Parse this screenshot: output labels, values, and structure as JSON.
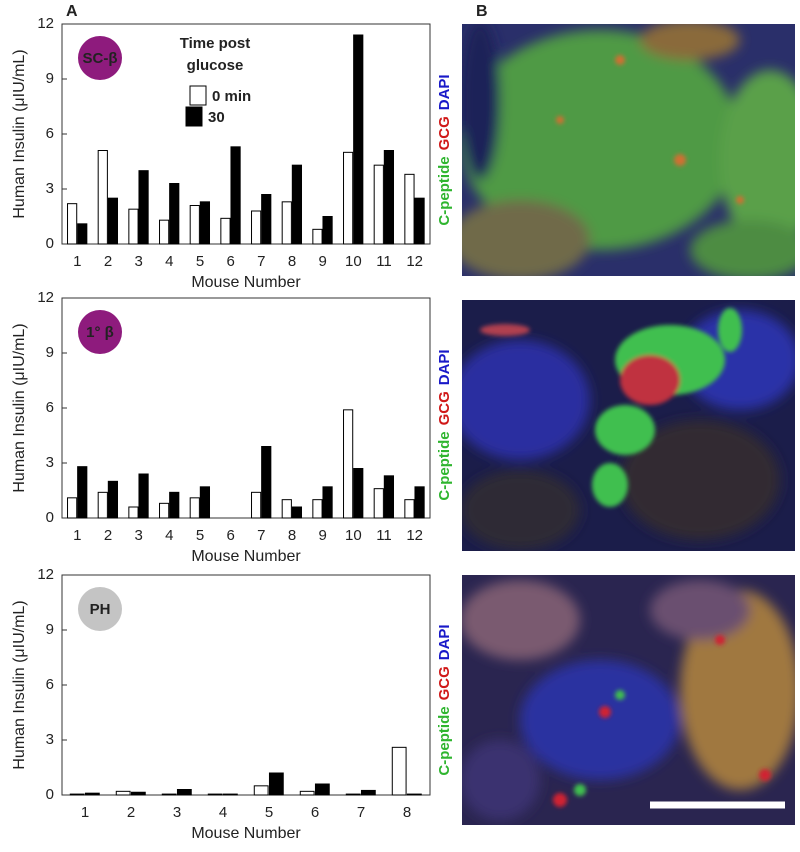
{
  "panel_labels": [
    "A",
    "B"
  ],
  "images": [
    {
      "stains": [
        "C-peptide",
        "GCG",
        "DAPI"
      ]
    },
    {
      "stains": [
        "C-peptide",
        "GCG",
        "DAPI"
      ]
    },
    {
      "stains": [
        "C-peptide",
        "GCG",
        "DAPI"
      ]
    }
  ],
  "chart_data": [
    {
      "type": "bar",
      "badge": {
        "text": "SC-β",
        "color": "#8e1b7d"
      },
      "legend_title": [
        "Time post",
        "glucose"
      ],
      "xlabel": "Mouse Number",
      "ylabel": "Human Insulin (μIU/mL)",
      "categories": [
        "1",
        "2",
        "3",
        "4",
        "5",
        "6",
        "7",
        "8",
        "9",
        "10",
        "11",
        "12"
      ],
      "series": [
        {
          "name": "0 min",
          "color": "#ffffff",
          "values": [
            2.2,
            5.1,
            1.9,
            1.3,
            2.1,
            1.4,
            1.8,
            2.3,
            0.8,
            5.0,
            4.3,
            3.8
          ]
        },
        {
          "name": "30",
          "color": "#000000",
          "values": [
            1.1,
            2.5,
            4.0,
            3.3,
            2.3,
            5.3,
            2.7,
            4.3,
            1.5,
            11.4,
            5.1,
            2.5
          ]
        }
      ],
      "ylim": [
        0,
        12
      ],
      "yticks": [
        0,
        3,
        6,
        9,
        12
      ]
    },
    {
      "type": "bar",
      "badge": {
        "text": "1° β",
        "color": "#8e1b7d"
      },
      "xlabel": "Mouse Number",
      "ylabel": "Human Insulin (μIU/mL)",
      "categories": [
        "1",
        "2",
        "3",
        "4",
        "5",
        "6",
        "7",
        "8",
        "9",
        "10",
        "11",
        "12"
      ],
      "series": [
        {
          "color": "#ffffff",
          "values": [
            1.1,
            1.4,
            0.6,
            0.8,
            1.1,
            0,
            1.4,
            1.0,
            1.0,
            5.9,
            1.6,
            1.0
          ]
        },
        {
          "color": "#000000",
          "values": [
            2.8,
            2.0,
            2.4,
            1.4,
            1.7,
            0,
            3.9,
            0.6,
            1.7,
            2.7,
            2.3,
            1.7
          ]
        }
      ],
      "ylim": [
        0,
        12
      ],
      "yticks": [
        0,
        3,
        6,
        9,
        12
      ]
    },
    {
      "type": "bar",
      "badge": {
        "text": "PH",
        "color": "#c4c4c4"
      },
      "xlabel": "Mouse Number",
      "ylabel": "Human Insulin (μIU/mL)",
      "categories": [
        "1",
        "2",
        "3",
        "4",
        "5",
        "6",
        "7",
        "8"
      ],
      "series": [
        {
          "color": "#ffffff",
          "values": [
            0.05,
            0.2,
            0.05,
            0.05,
            0.5,
            0.2,
            0.05,
            2.6
          ]
        },
        {
          "color": "#000000",
          "values": [
            0.1,
            0.15,
            0.3,
            0.05,
            1.2,
            0.6,
            0.25,
            0.05
          ]
        }
      ],
      "ylim": [
        0,
        12
      ],
      "yticks": [
        0,
        3,
        6,
        9,
        12
      ]
    }
  ]
}
